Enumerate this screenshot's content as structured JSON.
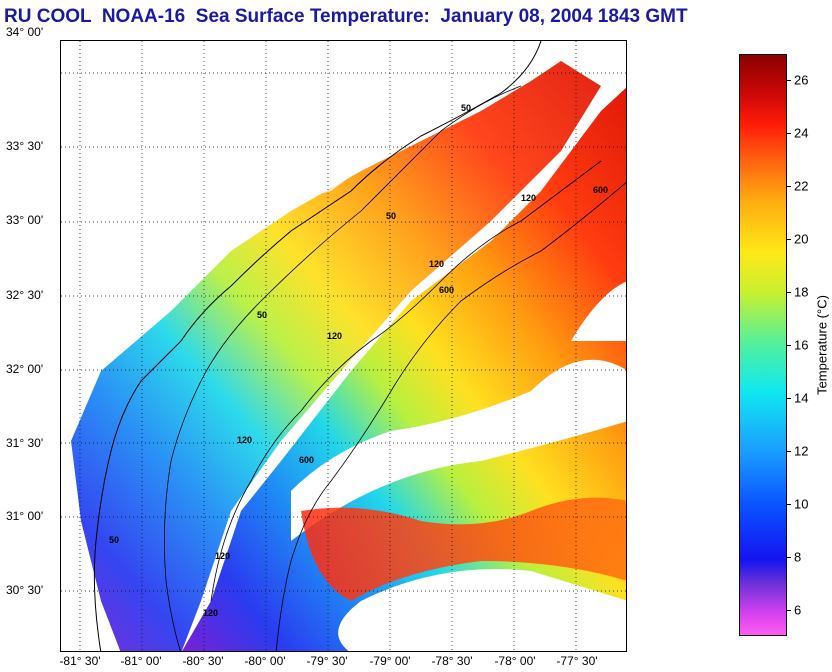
{
  "title": "RU COOL  NOAA-16  Sea Surface Temperature:  January 08, 2004 1843 GMT",
  "map": {
    "lat_labels": [
      "34° 00'",
      "33° 30'",
      "33° 00'",
      "32° 30'",
      "32° 00'",
      "31° 30'",
      "31° 00'",
      "30° 30'"
    ],
    "lon_labels": [
      "-81° 30'",
      "-81° 00'",
      "-80° 30'",
      "-80° 00'",
      "-79° 30'",
      "-79° 00'",
      "-78° 30'",
      "-78° 00'",
      "-77° 30'"
    ],
    "contour_labels": [
      "50",
      "120",
      "600"
    ],
    "land_color": "#ffffff",
    "coast_color": "#000000"
  },
  "colorbar": {
    "label": "Temperature (°C)",
    "ticks": [
      "6",
      "8",
      "10",
      "12",
      "14",
      "16",
      "18",
      "20",
      "22",
      "24",
      "26"
    ],
    "min": 5,
    "max": 27
  }
}
